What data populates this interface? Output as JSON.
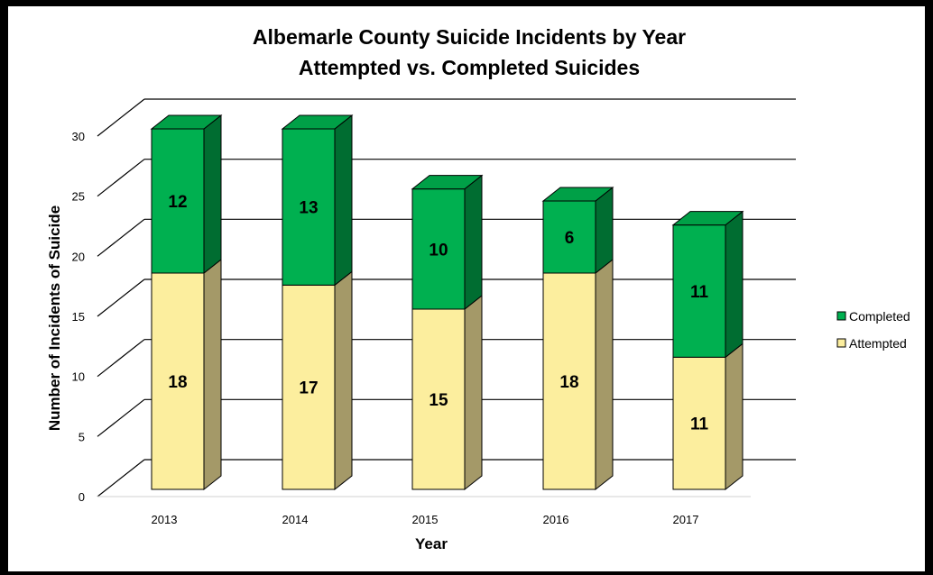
{
  "chart_data": {
    "type": "bar",
    "stacked": true,
    "three_d": true,
    "title": "Albemarle County Suicide Incidents by Year",
    "subtitle": "Attempted vs. Completed Suicides",
    "xlabel": "Year",
    "ylabel": "Number of Incidents of Suicide",
    "categories": [
      "2013",
      "2014",
      "2015",
      "2016",
      "2017"
    ],
    "series": [
      {
        "name": "Attempted",
        "values": [
          18,
          17,
          15,
          18,
          11
        ],
        "color": "#fcee9e",
        "side_color": "#a49968"
      },
      {
        "name": "Completed",
        "values": [
          12,
          13,
          10,
          6,
          11
        ],
        "color": "#00b050",
        "side_color": "#006d31"
      }
    ],
    "ylim": [
      0,
      30
    ],
    "yticks": [
      "0",
      "5",
      "10",
      "15",
      "20",
      "25",
      "30"
    ],
    "grid": true,
    "legend_position": "right",
    "data_labels": true
  }
}
